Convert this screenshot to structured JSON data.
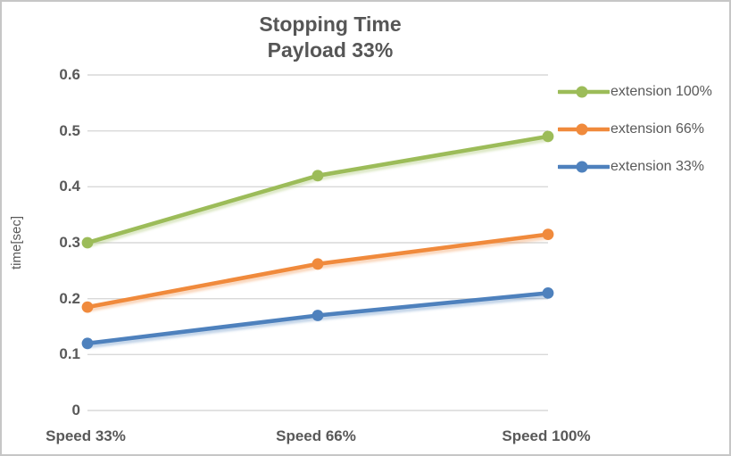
{
  "chart": {
    "title_line1": "Stopping Time",
    "title_line2": "Payload 33%",
    "ylabel": "time[sec]"
  },
  "chart_data": {
    "type": "line",
    "title": "Stopping Time",
    "subtitle": "Payload 33%",
    "xlabel": "",
    "ylabel": "time[sec]",
    "categories": [
      "Speed 33%",
      "Speed 66%",
      "Speed 100%"
    ],
    "series": [
      {
        "name": "extension 100%",
        "color": "#9CBC59",
        "values": [
          0.3,
          0.42,
          0.49
        ]
      },
      {
        "name": "extension 66%",
        "color": "#F08A3C",
        "values": [
          0.185,
          0.262,
          0.315
        ]
      },
      {
        "name": "extension 33%",
        "color": "#4E81BD",
        "values": [
          0.12,
          0.17,
          0.21
        ]
      }
    ],
    "ylim": [
      0,
      0.6
    ],
    "yticks": [
      0,
      0.1,
      0.2,
      0.3,
      0.4,
      0.5,
      0.6
    ],
    "ytick_labels": [
      "0",
      "0.1",
      "0.2",
      "0.3",
      "0.4",
      "0.5",
      "0.6"
    ],
    "grid": "horizontal",
    "marker": "circle",
    "legend_position": "right"
  },
  "colors": {
    "text": "#595959",
    "title": "#565656",
    "gridline": "#D9D9D9",
    "frame_border": "#C6C6C6",
    "background": "#FFFFFF"
  }
}
